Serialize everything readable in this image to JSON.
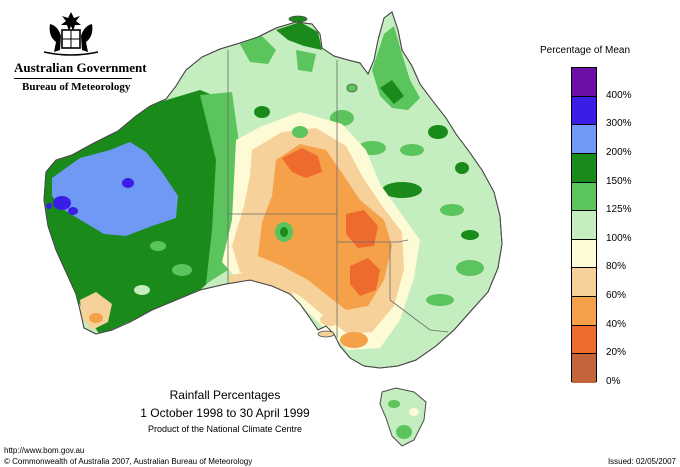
{
  "header": {
    "gov_title": "Australian Government",
    "bureau": "Bureau of Meteorology",
    "crest_icon": "commonwealth-coat-of-arms-icon"
  },
  "legend": {
    "title": "Percentage of Mean",
    "items": [
      {
        "label": "400%",
        "color": "#6b0fa6"
      },
      {
        "label": "300%",
        "color": "#3a1ee6"
      },
      {
        "label": "200%",
        "color": "#6f99f5"
      },
      {
        "label": "150%",
        "color": "#1a8a1a"
      },
      {
        "label": "125%",
        "color": "#5cc45c"
      },
      {
        "label": "100%",
        "color": "#c4edc0"
      },
      {
        "label": "80%",
        "color": "#fdfad6"
      },
      {
        "label": "60%",
        "color": "#f7d19a"
      },
      {
        "label": "40%",
        "color": "#f5a14a"
      },
      {
        "label": "20%",
        "color": "#ee6b2d"
      },
      {
        "label": "0%",
        "color": "#c4643a"
      }
    ]
  },
  "map": {
    "title": "Rainfall Percentages",
    "period": "1 October 1998 to 30 April 1999",
    "credit": "Product of the National Climate Centre"
  },
  "footer": {
    "url": "http://www.bom.gov.au",
    "copyright": "© Commonwealth of Australia 2007, Australian Bureau of Meteorology",
    "issued": "Issued: 02/05/2007"
  }
}
